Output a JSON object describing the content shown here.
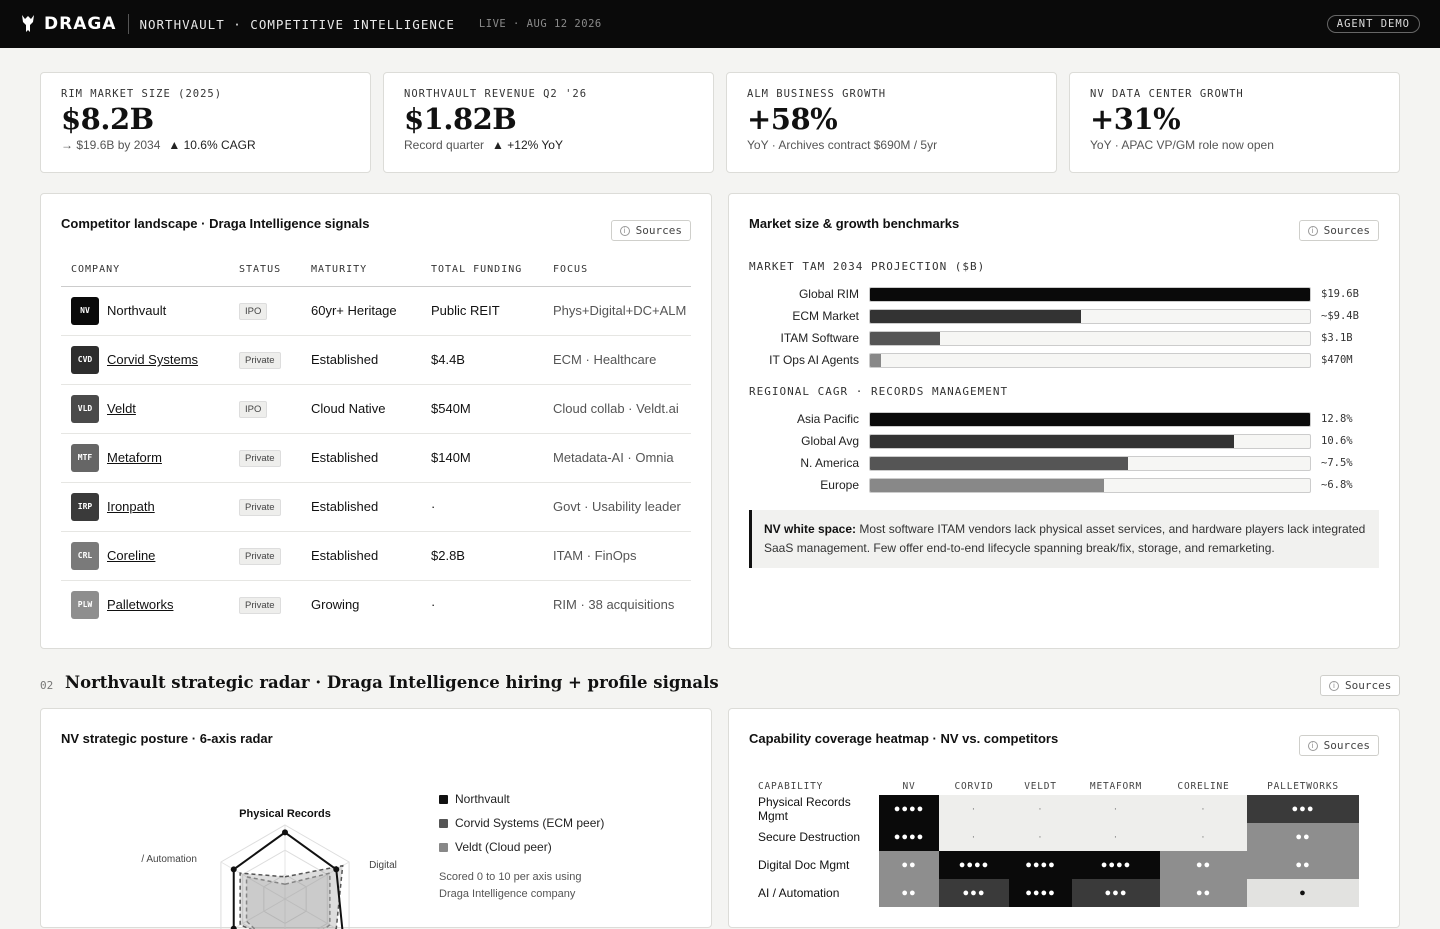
{
  "header": {
    "brand": "DRAGA",
    "project": "NORTHVAULT · COMPETITIVE INTELLIGENCE",
    "live": "LIVE · AUG 12 2026",
    "demo_badge": "AGENT DEMO"
  },
  "kpis": [
    {
      "label": "RIM MARKET SIZE (2025)",
      "value": "$8.2B",
      "sub_a": "→ $19.6B by 2034",
      "sub_b": "▲ 10.6% CAGR"
    },
    {
      "label": "NORTHVAULT REVENUE Q2 '26",
      "value": "$1.82B",
      "sub_a": "Record quarter",
      "sub_b": "▲ +12% YoY"
    },
    {
      "label": "ALM BUSINESS GROWTH",
      "value": "+58%",
      "sub_a": "YoY · Archives contract $690M / 5yr",
      "sub_b": ""
    },
    {
      "label": "NV DATA CENTER GROWTH",
      "value": "+31%",
      "sub_a": "YoY · APAC VP/GM role now open",
      "sub_b": ""
    }
  ],
  "sources_label": "Sources",
  "competitors": {
    "title": "Competitor landscape ·  Draga Intelligence signals",
    "columns": [
      "COMPANY",
      "STATUS",
      "MATURITY",
      "TOTAL FUNDING",
      "FOCUS"
    ],
    "rows": [
      {
        "abbr": "NV",
        "name": "Northvault",
        "status": "IPO",
        "maturity": "60yr+ Heritage",
        "funding": "Public REIT",
        "focus": "Phys+Digital+DC+ALM",
        "color": "#0a0a0a"
      },
      {
        "abbr": "CVD",
        "name": "Corvid Systems",
        "status": "Private",
        "maturity": "Established",
        "funding": "$4.4B",
        "focus": "ECM · Healthcare",
        "color": "#2e2e2e"
      },
      {
        "abbr": "VLD",
        "name": "Veldt",
        "status": "IPO",
        "maturity": "Cloud Native",
        "funding": "$540M",
        "focus": "Cloud collab · Veldt.ai",
        "color": "#4a4a4a"
      },
      {
        "abbr": "MTF",
        "name": "Metaform",
        "status": "Private",
        "maturity": "Established",
        "funding": "$140M",
        "focus": "Metadata-AI · Omnia",
        "color": "#666666"
      },
      {
        "abbr": "IRP",
        "name": "Ironpath",
        "status": "Private",
        "maturity": "Established",
        "funding": "·",
        "focus": "Govt · Usability leader",
        "color": "#3a3a3a"
      },
      {
        "abbr": "CRL",
        "name": "Coreline",
        "status": "Private",
        "maturity": "Established",
        "funding": "$2.8B",
        "focus": "ITAM · FinOps",
        "color": "#7a7a7a"
      },
      {
        "abbr": "PLW",
        "name": "Palletworks",
        "status": "Private",
        "maturity": "Growing",
        "funding": "·",
        "focus": "RIM · 38 acquisitions",
        "color": "#8e8e8e"
      }
    ]
  },
  "benchmarks": {
    "title": "Market size & growth benchmarks",
    "tam": {
      "heading": "MARKET TAM 2034 PROJECTION ($B)",
      "rows": [
        {
          "label": "Global RIM",
          "value": 19.6,
          "display": "$19.6B",
          "color": "#0a0a0a"
        },
        {
          "label": "ECM Market",
          "value": 9.4,
          "display": "~$9.4B",
          "color": "#333333"
        },
        {
          "label": "ITAM Software",
          "value": 3.1,
          "display": "$3.1B",
          "color": "#555555"
        },
        {
          "label": "IT Ops AI Agents",
          "value": 0.47,
          "display": "$470M",
          "color": "#888888"
        }
      ],
      "max": 19.6
    },
    "cagr": {
      "heading": "REGIONAL CAGR · RECORDS MANAGEMENT",
      "rows": [
        {
          "label": "Asia Pacific",
          "value": 12.8,
          "display": "12.8%",
          "color": "#0a0a0a"
        },
        {
          "label": "Global Avg",
          "value": 10.6,
          "display": "10.6%",
          "color": "#333333"
        },
        {
          "label": "N. America",
          "value": 7.5,
          "display": "~7.5%",
          "color": "#555555"
        },
        {
          "label": "Europe",
          "value": 6.8,
          "display": "~6.8%",
          "color": "#888888"
        }
      ],
      "max": 12.8
    },
    "note_bold": "NV white space:",
    "note_text": " Most software ITAM vendors lack physical asset services, and hardware players lack integrated SaaS management. Few offer end-to-end lifecycle spanning break/fix, storage, and remarketing."
  },
  "section2": {
    "number": "02",
    "title": "Northvault strategic radar · Draga Intelligence hiring + profile signals"
  },
  "radar": {
    "title": "NV strategic posture ·  6-axis radar",
    "axes": [
      "Physical Records",
      "Digital",
      "",
      "",
      "",
      "/ Automation"
    ],
    "series": [
      {
        "name": "Northvault",
        "color": "#111111",
        "values": [
          9,
          8,
          9,
          7,
          8,
          8
        ]
      },
      {
        "name": "Corvid Systems (ECM peer)",
        "color": "#555555",
        "values": [
          3,
          9,
          8,
          6,
          7,
          7
        ]
      },
      {
        "name": "Veldt (Cloud peer)",
        "color": "#888888",
        "values": [
          2,
          7,
          7,
          8,
          6,
          6
        ]
      }
    ],
    "note": "Scored 0 to 10 per axis using Draga Intelligence company"
  },
  "heatmap": {
    "title": "Capability coverage heatmap ·  NV vs. competitors",
    "columns": [
      "CAPABILITY",
      "NV",
      "CORVID",
      "VELDT",
      "METAFORM",
      "CORELINE",
      "PALLETWORKS"
    ],
    "rows": [
      {
        "capability": "Physical Records Mgmt",
        "cells": [
          4,
          0,
          0,
          0,
          0,
          3
        ]
      },
      {
        "capability": "Secure Destruction",
        "cells": [
          4,
          0,
          0,
          0,
          0,
          2
        ]
      },
      {
        "capability": "Digital Doc Mgmt",
        "cells": [
          2,
          4,
          4,
          4,
          2,
          2
        ]
      },
      {
        "capability": "AI / Automation",
        "cells": [
          2,
          3,
          4,
          3,
          2,
          1
        ]
      }
    ],
    "symbols": {
      "0": "·",
      "1": "●",
      "2": "●●",
      "3": "●●●",
      "4": "●●●●"
    },
    "colors": {
      "0": "#eeeeec",
      "1": "#e2e2e0",
      "2": "#8e8e8e",
      "3": "#3a3a3a",
      "4": "#0a0a0a"
    }
  }
}
